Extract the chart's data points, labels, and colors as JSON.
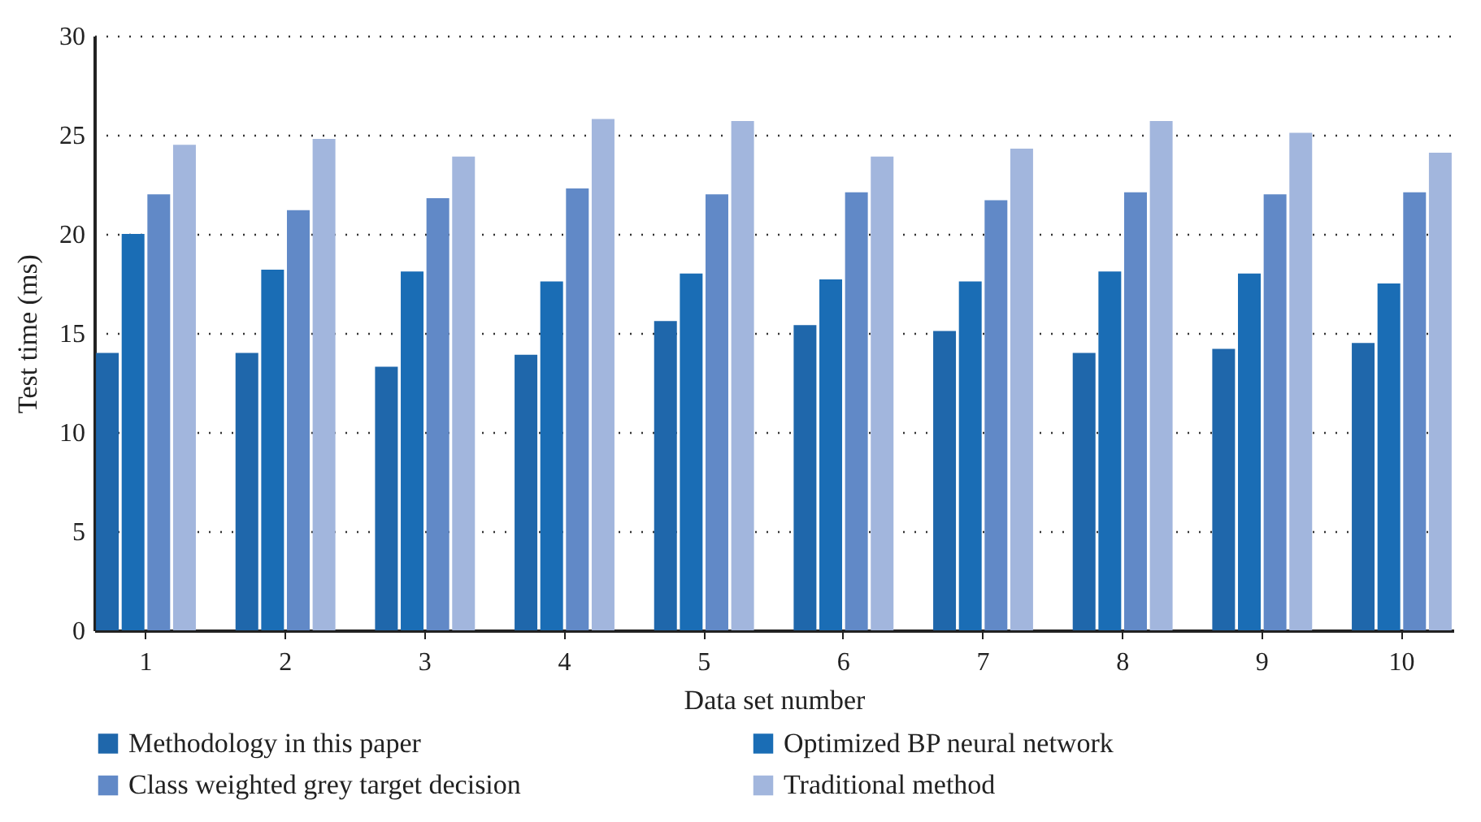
{
  "chart_data": {
    "type": "bar",
    "xlabel": "Data set number",
    "ylabel": "Test time (ms)",
    "categories": [
      "1",
      "2",
      "3",
      "4",
      "5",
      "6",
      "7",
      "8",
      "9",
      "10"
    ],
    "series": [
      {
        "name": "Methodology in this paper",
        "color": "#1f67ab",
        "values": [
          14.0,
          14.0,
          13.3,
          13.9,
          15.6,
          15.4,
          15.1,
          14.0,
          14.2,
          14.5
        ]
      },
      {
        "name": "Optimized BP neural network",
        "color": "#1a6db5",
        "values": [
          20.0,
          18.2,
          18.1,
          17.6,
          18.0,
          17.7,
          17.6,
          18.1,
          18.0,
          17.5
        ]
      },
      {
        "name": "Class weighted grey target decision",
        "color": "#6189c7",
        "values": [
          22.0,
          21.2,
          21.8,
          22.3,
          22.0,
          22.1,
          21.7,
          22.1,
          22.0,
          22.1
        ]
      },
      {
        "name": "Traditional method",
        "color": "#a2b6dd",
        "values": [
          24.5,
          24.8,
          23.9,
          25.8,
          25.7,
          23.9,
          24.3,
          25.7,
          25.1,
          24.1
        ]
      }
    ],
    "ylim": [
      0,
      30
    ],
    "yticks": [
      0,
      5,
      10,
      15,
      20,
      25,
      30
    ],
    "grid": "y",
    "legend": "bottom"
  }
}
